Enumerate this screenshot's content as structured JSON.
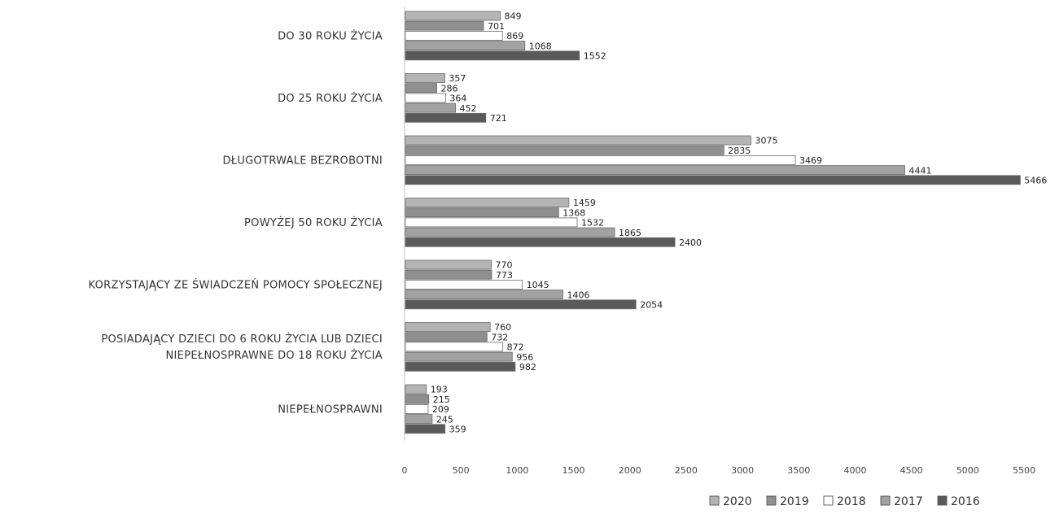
{
  "chart_data": {
    "type": "bar",
    "orientation": "horizontal",
    "categories": [
      [
        "DO 30 ROKU ŻYCIA"
      ],
      [
        "DO 25 ROKU ŻYCIA"
      ],
      [
        "DŁUGOTRWALE BEZROBOTNI"
      ],
      [
        "POWYŻEJ 50 ROKU ŻYCIA"
      ],
      [
        "KORZYSTAJĄCY ZE ŚWIADCZEŃ POMOCY SPOŁECZNEJ"
      ],
      [
        "POSIADAJĄCY DZIECI DO 6 ROKU ŻYCIA LUB DZIECI",
        "NIEPEŁNOSPRAWNE DO 18 ROKU ŻYCIA"
      ],
      [
        "NIEPEŁNOSPRAWNI"
      ]
    ],
    "series": [
      {
        "name": "2020",
        "color": "#b4b4b4",
        "values": [
          849,
          357,
          3075,
          1459,
          770,
          760,
          193
        ]
      },
      {
        "name": "2019",
        "color": "#8f8f8f",
        "values": [
          701,
          286,
          2835,
          1368,
          773,
          732,
          215
        ]
      },
      {
        "name": "2018",
        "color": "#ffffff",
        "values": [
          869,
          364,
          3469,
          1532,
          1045,
          872,
          209
        ]
      },
      {
        "name": "2017",
        "color": "#a2a2a2",
        "values": [
          1068,
          452,
          4441,
          1865,
          1406,
          956,
          245
        ]
      },
      {
        "name": "2016",
        "color": "#5a5a5a",
        "values": [
          1552,
          721,
          5466,
          2400,
          2054,
          982,
          359
        ]
      }
    ],
    "xlim": [
      0,
      5500
    ],
    "xticks": [
      0,
      500,
      1000,
      1500,
      2000,
      2500,
      3000,
      3500,
      4000,
      4500,
      5000,
      5500
    ],
    "grid": false,
    "legend_position": "bottom-right"
  }
}
